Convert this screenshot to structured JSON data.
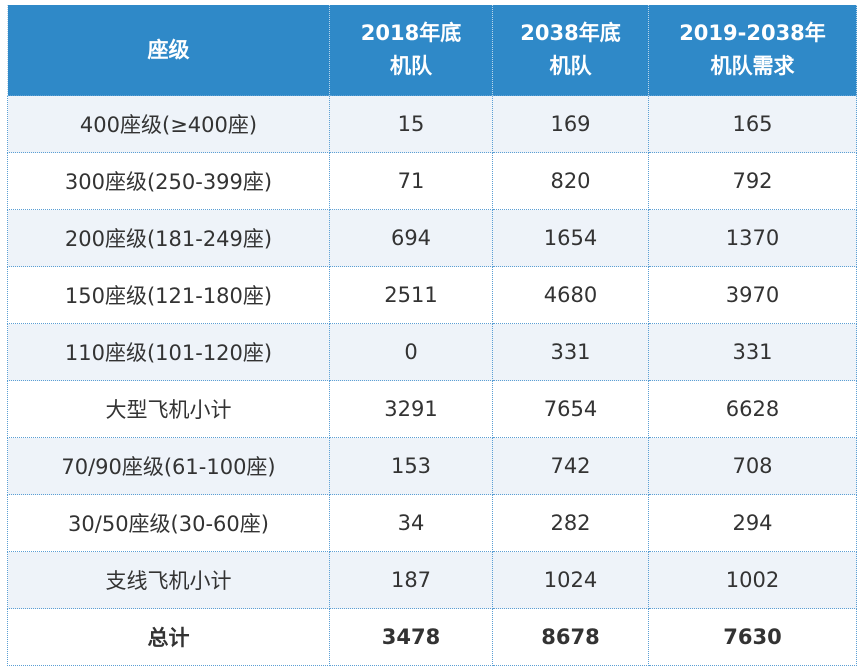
{
  "table": {
    "header": {
      "col0": [
        "座级"
      ],
      "col1": [
        "2018年底",
        "机队"
      ],
      "col2": [
        "2038年底",
        "机队"
      ],
      "col3": [
        "2019-2038年",
        "机队需求"
      ]
    },
    "rows": [
      {
        "label": "400座级(≥400座)",
        "v2018": "15",
        "v2038": "169",
        "demand": "165"
      },
      {
        "label": "300座级(250-399座)",
        "v2018": "71",
        "v2038": "820",
        "demand": "792"
      },
      {
        "label": "200座级(181-249座)",
        "v2018": "694",
        "v2038": "1654",
        "demand": "1370"
      },
      {
        "label": "150座级(121-180座)",
        "v2018": "2511",
        "v2038": "4680",
        "demand": "3970"
      },
      {
        "label": "110座级(101-120座)",
        "v2018": "0",
        "v2038": "331",
        "demand": "331"
      },
      {
        "label": "大型飞机小计",
        "v2018": "3291",
        "v2038": "7654",
        "demand": "6628"
      },
      {
        "label": "70/90座级(61-100座)",
        "v2018": "153",
        "v2038": "742",
        "demand": "708"
      },
      {
        "label": "30/50座级(30-60座)",
        "v2018": "34",
        "v2038": "282",
        "demand": "294"
      },
      {
        "label": "支线飞机小计",
        "v2018": "187",
        "v2038": "1024",
        "demand": "1002"
      }
    ],
    "total": {
      "label": "总计",
      "v2018": "3478",
      "v2038": "8678",
      "demand": "7630"
    }
  },
  "colors": {
    "header_bg": "#2f89c8",
    "header_text": "#ffffff",
    "row_stripe": "#eef3f9",
    "border": "#5b9fd4",
    "text": "#333333"
  }
}
